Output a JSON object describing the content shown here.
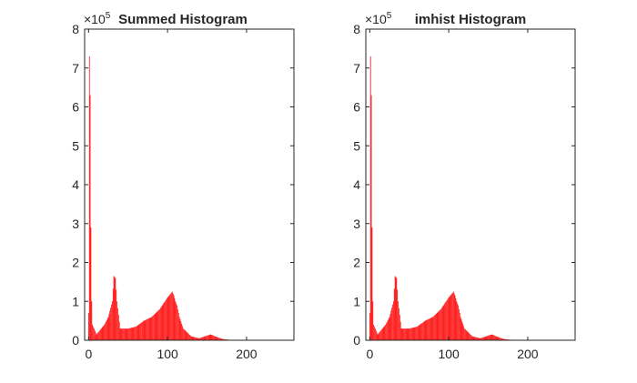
{
  "chart_data": [
    {
      "type": "bar",
      "title": "Summed Histogram",
      "exponent_label": "×10",
      "exponent_power": "5",
      "xlabel": "",
      "ylabel": "",
      "xlim": [
        -5,
        260
      ],
      "ylim": [
        0,
        8
      ],
      "y_unit_multiplier": 100000,
      "xticks": [
        0,
        100,
        200
      ],
      "yticks": [
        0,
        1,
        2,
        3,
        4,
        5,
        6,
        7,
        8
      ],
      "bar_color": "#ff0000",
      "grid": false,
      "bins": 256,
      "x": [
        0,
        1,
        2,
        3,
        4,
        5,
        10,
        20,
        25,
        30,
        32,
        34,
        36,
        40,
        50,
        60,
        70,
        80,
        90,
        95,
        100,
        104,
        106,
        108,
        110,
        112,
        115,
        120,
        130,
        140,
        150,
        155,
        160,
        170,
        180,
        190,
        200,
        210,
        220,
        230,
        240,
        250,
        255
      ],
      "values": [
        0.7,
        7.3,
        6.3,
        2.9,
        1.0,
        0.4,
        0.15,
        0.4,
        0.6,
        1.0,
        1.65,
        1.6,
        1.0,
        0.3,
        0.3,
        0.35,
        0.5,
        0.6,
        0.8,
        0.95,
        1.1,
        1.2,
        1.25,
        1.15,
        1.0,
        0.9,
        0.6,
        0.3,
        0.1,
        0.05,
        0.12,
        0.15,
        0.1,
        0.03,
        0.01,
        0.005,
        0.002,
        0.001,
        0,
        0,
        0,
        0,
        0
      ]
    },
    {
      "type": "bar",
      "title": "imhist Histogram",
      "exponent_label": "×10",
      "exponent_power": "5",
      "xlabel": "",
      "ylabel": "",
      "xlim": [
        -5,
        260
      ],
      "ylim": [
        0,
        8
      ],
      "y_unit_multiplier": 100000,
      "xticks": [
        0,
        100,
        200
      ],
      "yticks": [
        0,
        1,
        2,
        3,
        4,
        5,
        6,
        7,
        8
      ],
      "bar_color": "#ff0000",
      "grid": false,
      "bins": 256,
      "x": [
        0,
        1,
        2,
        3,
        4,
        5,
        10,
        20,
        25,
        30,
        32,
        34,
        36,
        40,
        50,
        60,
        70,
        80,
        90,
        95,
        100,
        104,
        106,
        108,
        110,
        112,
        115,
        120,
        130,
        140,
        150,
        155,
        160,
        170,
        180,
        190,
        200,
        210,
        220,
        230,
        240,
        250,
        255
      ],
      "values": [
        0.7,
        7.3,
        6.3,
        2.9,
        1.0,
        0.4,
        0.15,
        0.4,
        0.6,
        1.0,
        1.65,
        1.6,
        1.0,
        0.3,
        0.3,
        0.35,
        0.5,
        0.6,
        0.8,
        0.95,
        1.1,
        1.2,
        1.25,
        1.15,
        1.0,
        0.9,
        0.6,
        0.3,
        0.1,
        0.05,
        0.12,
        0.15,
        0.1,
        0.03,
        0.01,
        0.005,
        0.002,
        0.001,
        0,
        0,
        0,
        0,
        0
      ]
    }
  ]
}
